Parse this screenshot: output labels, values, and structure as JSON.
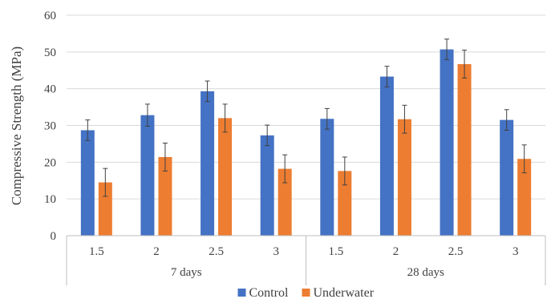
{
  "chart_data": {
    "type": "bar",
    "ylabel": "Compressive Strength (MPa)",
    "xlabel": "",
    "title": "",
    "ylim": [
      0,
      60
    ],
    "yticks": [
      "0",
      "10",
      "20",
      "30",
      "40",
      "50",
      "60"
    ],
    "grid": true,
    "legend_position": "bottom",
    "groups": [
      {
        "label": "7 days",
        "categories": [
          "1.5",
          "2",
          "2.5",
          "3"
        ]
      },
      {
        "label": "28 days",
        "categories": [
          "1.5",
          "2",
          "2.5",
          "3"
        ]
      }
    ],
    "series": [
      {
        "name": "Control",
        "color": "#4472C4",
        "values": [
          28.7,
          32.8,
          39.3,
          27.3,
          31.8,
          43.3,
          50.7,
          31.5
        ],
        "errors": [
          2.8,
          3.0,
          2.8,
          2.8,
          2.8,
          2.8,
          2.8,
          2.8
        ]
      },
      {
        "name": "Underwater",
        "color": "#ED7D31",
        "values": [
          14.5,
          21.4,
          32.0,
          18.2,
          17.6,
          31.7,
          46.7,
          20.9
        ],
        "errors": [
          3.8,
          3.8,
          3.8,
          3.8,
          3.8,
          3.8,
          3.8,
          3.8
        ]
      }
    ]
  }
}
